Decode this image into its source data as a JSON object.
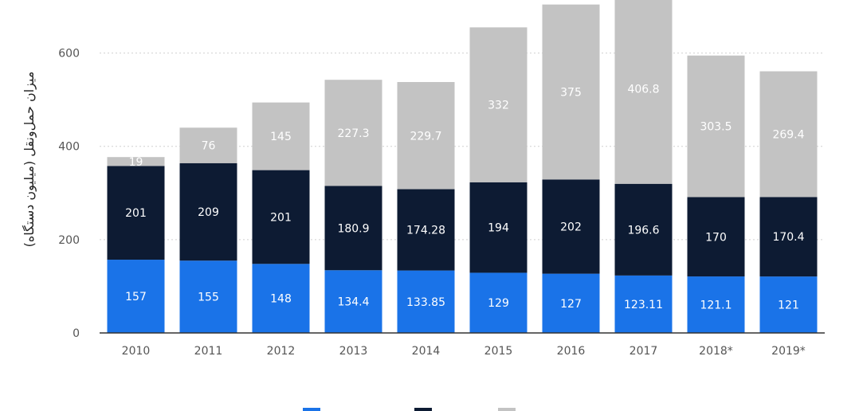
{
  "chart_data": {
    "type": "bar",
    "stacked": true,
    "title": "",
    "xlabel": "",
    "ylabel": "میزان حمل‌ونقل (میلیون دستگاه)",
    "ylim": [
      0,
      700
    ],
    "yticks": [
      0,
      200,
      400,
      600
    ],
    "grid": true,
    "legend_position": "bottom",
    "categories": [
      "2010",
      "2011",
      "2012",
      "2013",
      "2014",
      "2015",
      "2016",
      "2017",
      "2018*",
      "2019*"
    ],
    "series": [
      {
        "color": "#1a73e8",
        "label_color": "#ffffff",
        "values": [
          157,
          155,
          148,
          134.4,
          133.85,
          129,
          127,
          123.11,
          121.1,
          121
        ],
        "labels": [
          "157",
          "155",
          "148",
          "134.4",
          "133.85",
          "129",
          "127",
          "123.11",
          "121.1",
          "121"
        ]
      },
      {
        "color": "#0d1b33",
        "label_color": "#ffffff",
        "values": [
          201,
          209,
          201,
          180.9,
          174.28,
          194,
          202,
          196.6,
          170,
          170.4
        ],
        "labels": [
          "201",
          "209",
          "201",
          "180.9",
          "174.28",
          "194",
          "202",
          "196.6",
          "170",
          "170.4"
        ]
      },
      {
        "color": "#c3c3c3",
        "label_color": "#ffffff",
        "values": [
          19,
          76,
          145,
          227.3,
          229.7,
          332,
          375,
          406.8,
          303.5,
          269.4
        ],
        "labels": [
          "19",
          "76",
          "145",
          "227.3",
          "229.7",
          "332",
          "375",
          "406.8",
          "303.5",
          "269.4"
        ]
      }
    ]
  }
}
